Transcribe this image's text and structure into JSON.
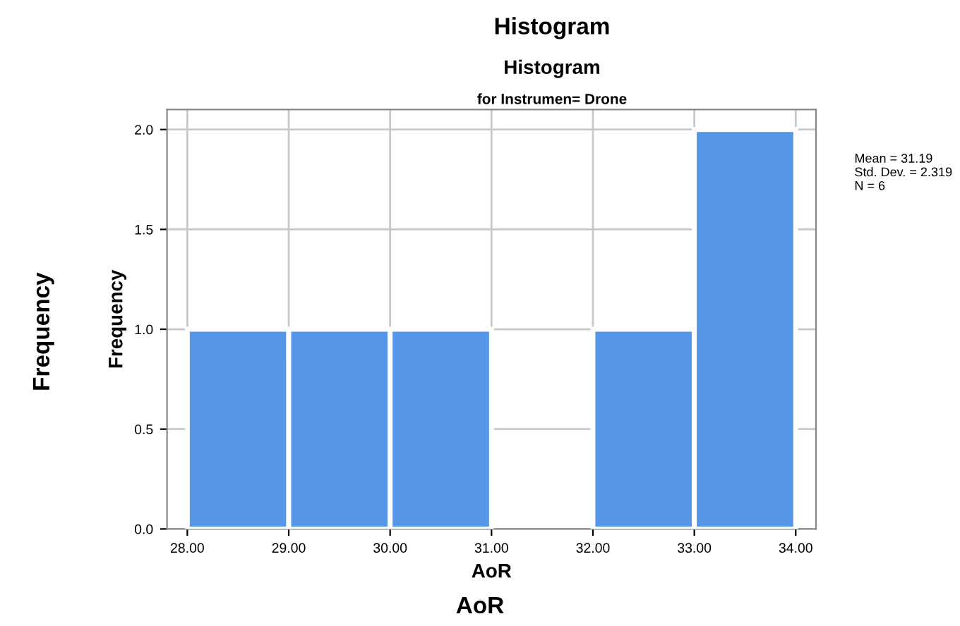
{
  "chart_data": {
    "type": "histogram",
    "title": "Histogram",
    "subtitle": "Histogram",
    "xlabel": "AoR",
    "ylabel": "Frequency",
    "bins": [
      28,
      29,
      30,
      31,
      32,
      33,
      34
    ],
    "values": [
      1,
      1,
      1,
      0,
      1,
      2
    ],
    "color": "#5596e6",
    "xlim": [
      27.8,
      34.2
    ],
    "ylim": [
      0,
      2.1
    ],
    "xticks": [
      {
        "value": 28,
        "label": "28.00"
      },
      {
        "value": 29,
        "label": "29.00"
      },
      {
        "value": 30,
        "label": "30.00"
      },
      {
        "value": 31,
        "label": "31.00"
      },
      {
        "value": 32,
        "label": "32.00"
      },
      {
        "value": 33,
        "label": "33.00"
      },
      {
        "value": 34,
        "label": "34.00"
      }
    ],
    "yticks": [
      {
        "value": 0,
        "label": "0.0"
      },
      {
        "value": 0.5,
        "label": "0.5"
      },
      {
        "value": 1,
        "label": "1.0"
      },
      {
        "value": 1.5,
        "label": "1.5"
      },
      {
        "value": 2,
        "label": "2.0"
      }
    ],
    "grid": true,
    "annotations": [
      "for Instrumen= Drone",
      "Mean = 31.19\nStd. Dev. = 2.319\nN = 6",
      "Frequency",
      "AoR"
    ]
  }
}
